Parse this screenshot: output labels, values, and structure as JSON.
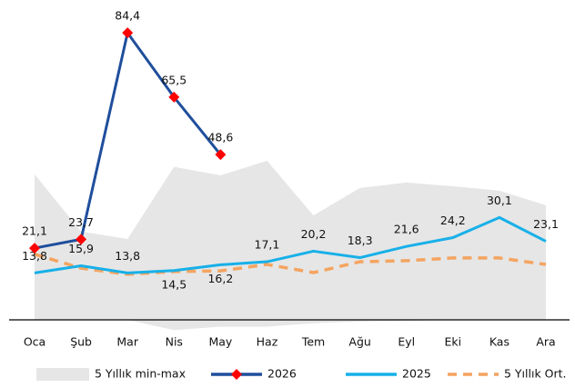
{
  "chart_data": {
    "type": "line",
    "categories": [
      "Oca",
      "Şub",
      "Mar",
      "Nis",
      "May",
      "Haz",
      "Tem",
      "Ağu",
      "Eyl",
      "Eki",
      "Kas",
      "Ara"
    ],
    "range": {
      "name": "5 Yıllık min-max",
      "color": "#e6e6e6",
      "min": [
        0,
        0,
        0,
        -3,
        -2,
        -2,
        -1,
        -0.5,
        -0.3,
        0,
        0,
        0
      ],
      "max": [
        42.8,
        26,
        23.8,
        45,
        42.5,
        46.8,
        30.7,
        38.8,
        40.4,
        39.3,
        38,
        33.7
      ]
    },
    "series": [
      {
        "name": "2026",
        "color": "#1f4e9c",
        "marker_color": "#ff0000",
        "values": [
          21.1,
          23.7,
          84.4,
          65.5,
          48.6,
          null,
          null,
          null,
          null,
          null,
          null,
          null
        ],
        "value_labels": [
          "21,1",
          "23,7",
          "84,4",
          "65,5",
          "48,6",
          null,
          null,
          null,
          null,
          null,
          null,
          null
        ]
      },
      {
        "name": "2025",
        "color": "#17b0e8",
        "values": [
          13.8,
          15.9,
          13.8,
          14.5,
          16.2,
          17.1,
          20.2,
          18.3,
          21.6,
          24.2,
          30.1,
          23.1
        ],
        "value_labels": [
          "13,8",
          "15,9",
          "13,8",
          "14,5",
          "16,2",
          "17,1",
          "20,2",
          "18,3",
          "21,6",
          "24,2",
          "30,1",
          "23,1"
        ]
      },
      {
        "name": "5 Yıllık Ort.",
        "color": "#f4a460",
        "dashed": true,
        "values": [
          19.3,
          15.2,
          13.4,
          14.2,
          14.4,
          16.3,
          13.9,
          17.1,
          17.4,
          18.2,
          18.2,
          16.3
        ]
      }
    ],
    "ylim": [
      -4,
      93
    ]
  }
}
